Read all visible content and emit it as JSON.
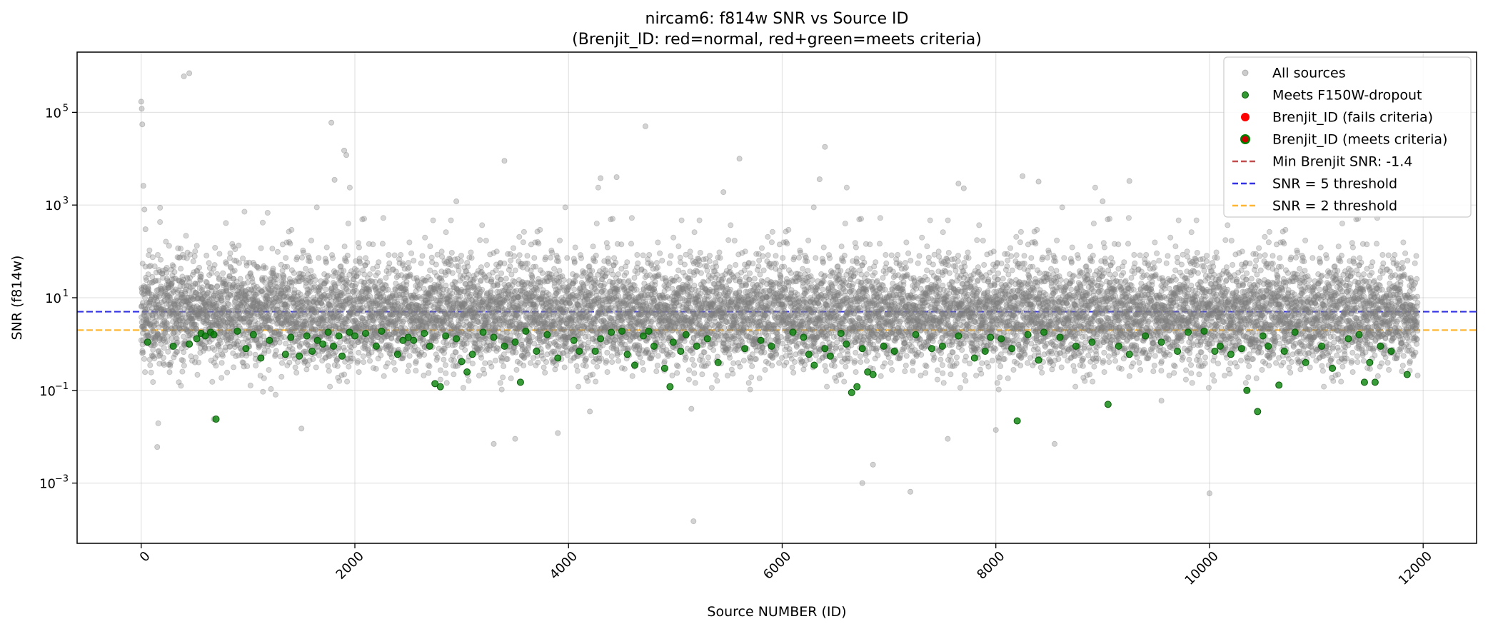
{
  "chart_data": {
    "type": "scatter",
    "title_line1": "nircam6: f814w SNR vs Source ID",
    "title_line2": "(Brenjit_ID: red=normal, red+green=meets criteria)",
    "xlabel": "Source NUMBER (ID)",
    "ylabel": "SNR (f814w)",
    "xlim": [
      -600,
      12500
    ],
    "ylim_log10": [
      -4.3,
      6.3
    ],
    "y_scale": "log",
    "x_ticks": [
      0,
      2000,
      4000,
      6000,
      8000,
      10000,
      12000
    ],
    "x_tick_labels": [
      "0",
      "2000",
      "4000",
      "6000",
      "8000",
      "10000",
      "12000"
    ],
    "y_ticks_log10": [
      -3,
      -1,
      1,
      3,
      5
    ],
    "y_tick_labels": [
      "10",
      "10",
      "10",
      "10",
      "10"
    ],
    "y_tick_exponents": [
      "−3",
      "−1",
      "1",
      "3",
      "5"
    ],
    "grid": true,
    "legend_position": "top-right",
    "colors": {
      "all_sources": "#808080",
      "meets_dropout": "#008000",
      "brenjit_fail": "#ff0000",
      "snr5_line": "#0000dd",
      "snr2_line": "#ffa500",
      "min_brenjit_line": "#b22222"
    },
    "thresholds": {
      "snr5": 5,
      "snr2": 2
    },
    "legend": [
      {
        "label": "All sources",
        "marker": "gray-dot"
      },
      {
        "label": "Meets F150W-dropout",
        "marker": "green-dot"
      },
      {
        "label": "Brenjit_ID (fails criteria)",
        "marker": "red-dot"
      },
      {
        "label": "Brenjit_ID (meets criteria)",
        "marker": "red-green-dot"
      },
      {
        "label": "Min Brenjit SNR: -1.4",
        "marker": "darkred-dash"
      },
      {
        "label": "SNR = 5 threshold",
        "marker": "blue-dash"
      },
      {
        "label": "SNR = 2 threshold",
        "marker": "orange-dash"
      }
    ],
    "all_sources": {
      "x_range": [
        0,
        11950
      ],
      "count_approx": 11950,
      "notable_points": [
        [
          0,
          170000
        ],
        [
          5,
          120000
        ],
        [
          10,
          55000
        ],
        [
          20,
          2600
        ],
        [
          30,
          800
        ],
        [
          40,
          300
        ],
        [
          400,
          600000
        ],
        [
          450,
          700000
        ],
        [
          1780,
          60000
        ],
        [
          1900,
          15000
        ],
        [
          1920,
          12000
        ],
        [
          1810,
          3500
        ],
        [
          2950,
          1200
        ],
        [
          3400,
          9000
        ],
        [
          4300,
          3800
        ],
        [
          4450,
          4000
        ],
        [
          4720,
          50000
        ],
        [
          5600,
          10000
        ],
        [
          5450,
          1900
        ],
        [
          6400,
          18000
        ],
        [
          6350,
          3600
        ],
        [
          7650,
          2900
        ],
        [
          7700,
          2300
        ],
        [
          8250,
          4200
        ],
        [
          8400,
          3200
        ],
        [
          9250,
          3300
        ],
        [
          9000,
          1200
        ],
        [
          680,
          0.024
        ],
        [
          150,
          0.006
        ],
        [
          1500,
          0.015
        ],
        [
          3300,
          0.007
        ],
        [
          3500,
          0.009
        ],
        [
          3900,
          0.012
        ],
        [
          5170,
          0.00015
        ],
        [
          6750,
          0.001
        ],
        [
          6850,
          0.0025
        ],
        [
          7200,
          0.00065
        ],
        [
          7550,
          0.009
        ],
        [
          8000,
          0.014
        ],
        [
          8550,
          0.007
        ],
        [
          10000,
          0.0006
        ],
        [
          4200,
          0.035
        ],
        [
          5150,
          0.04
        ],
        [
          9550,
          0.06
        ]
      ]
    },
    "meets_dropout_points": [
      [
        60,
        1.1
      ],
      [
        300,
        0.9
      ],
      [
        450,
        1.0
      ],
      [
        520,
        1.3
      ],
      [
        560,
        1.7
      ],
      [
        600,
        1.5
      ],
      [
        650,
        1.8
      ],
      [
        680,
        1.6
      ],
      [
        700,
        0.024
      ],
      [
        900,
        1.9
      ],
      [
        980,
        0.8
      ],
      [
        1050,
        1.6
      ],
      [
        1120,
        0.5
      ],
      [
        1200,
        1.2
      ],
      [
        1350,
        0.6
      ],
      [
        1400,
        1.4
      ],
      [
        1480,
        0.55
      ],
      [
        1550,
        1.5
      ],
      [
        1600,
        0.7
      ],
      [
        1650,
        1.2
      ],
      [
        1700,
        1.0
      ],
      [
        1750,
        1.8
      ],
      [
        1800,
        0.9
      ],
      [
        1850,
        1.5
      ],
      [
        1880,
        0.55
      ],
      [
        1950,
        1.8
      ],
      [
        2000,
        1.5
      ],
      [
        2100,
        1.7
      ],
      [
        2200,
        0.9
      ],
      [
        2250,
        1.9
      ],
      [
        2400,
        0.6
      ],
      [
        2450,
        1.2
      ],
      [
        2500,
        1.4
      ],
      [
        2550,
        1.2
      ],
      [
        2650,
        1.7
      ],
      [
        2700,
        0.9
      ],
      [
        2750,
        0.14
      ],
      [
        2800,
        0.12
      ],
      [
        2850,
        1.5
      ],
      [
        2950,
        1.3
      ],
      [
        3000,
        0.42
      ],
      [
        3050,
        0.25
      ],
      [
        3100,
        0.6
      ],
      [
        3200,
        1.8
      ],
      [
        3300,
        1.4
      ],
      [
        3400,
        0.9
      ],
      [
        3500,
        1.1
      ],
      [
        3550,
        0.15
      ],
      [
        3600,
        1.9
      ],
      [
        3700,
        0.7
      ],
      [
        3800,
        1.6
      ],
      [
        3900,
        0.5
      ],
      [
        4050,
        1.2
      ],
      [
        4100,
        0.7
      ],
      [
        4250,
        0.7
      ],
      [
        4300,
        1.3
      ],
      [
        4400,
        1.8
      ],
      [
        4500,
        1.9
      ],
      [
        4550,
        0.6
      ],
      [
        4620,
        0.35
      ],
      [
        4700,
        1.5
      ],
      [
        4750,
        1.9
      ],
      [
        4800,
        0.9
      ],
      [
        4900,
        0.3
      ],
      [
        4950,
        0.12
      ],
      [
        4980,
        1.1
      ],
      [
        5050,
        0.7
      ],
      [
        5100,
        1.6
      ],
      [
        5200,
        0.9
      ],
      [
        5300,
        1.3
      ],
      [
        5400,
        0.4
      ],
      [
        5650,
        0.8
      ],
      [
        5800,
        1.2
      ],
      [
        5900,
        0.9
      ],
      [
        6100,
        1.8
      ],
      [
        6200,
        1.4
      ],
      [
        6250,
        0.6
      ],
      [
        6300,
        0.35
      ],
      [
        6400,
        0.8
      ],
      [
        6450,
        0.55
      ],
      [
        6550,
        1.7
      ],
      [
        6600,
        1.0
      ],
      [
        6650,
        0.09
      ],
      [
        6700,
        0.12
      ],
      [
        6750,
        0.8
      ],
      [
        6800,
        0.25
      ],
      [
        6850,
        0.22
      ],
      [
        6950,
        0.9
      ],
      [
        7050,
        0.7
      ],
      [
        7250,
        1.6
      ],
      [
        7400,
        0.8
      ],
      [
        7500,
        0.9
      ],
      [
        7650,
        1.5
      ],
      [
        7800,
        0.5
      ],
      [
        7900,
        0.7
      ],
      [
        7950,
        1.4
      ],
      [
        8050,
        1.3
      ],
      [
        8150,
        0.8
      ],
      [
        8200,
        0.022
      ],
      [
        8300,
        1.6
      ],
      [
        8400,
        0.45
      ],
      [
        8450,
        1.8
      ],
      [
        8600,
        1.4
      ],
      [
        8750,
        0.9
      ],
      [
        8900,
        1.1
      ],
      [
        9050,
        0.05
      ],
      [
        9150,
        0.9
      ],
      [
        9250,
        0.6
      ],
      [
        9400,
        1.5
      ],
      [
        9550,
        1.1
      ],
      [
        9700,
        0.7
      ],
      [
        9800,
        1.8
      ],
      [
        9950,
        1.9
      ],
      [
        10050,
        0.7
      ],
      [
        10100,
        0.9
      ],
      [
        10200,
        0.6
      ],
      [
        10300,
        0.8
      ],
      [
        10350,
        0.1
      ],
      [
        10450,
        0.035
      ],
      [
        10500,
        1.5
      ],
      [
        10550,
        0.9
      ],
      [
        10650,
        0.13
      ],
      [
        10700,
        0.7
      ],
      [
        10800,
        1.8
      ],
      [
        10900,
        0.4
      ],
      [
        11050,
        0.9
      ],
      [
        11150,
        0.3
      ],
      [
        11300,
        1.3
      ],
      [
        11400,
        1.6
      ],
      [
        11450,
        0.15
      ],
      [
        11500,
        0.4
      ],
      [
        11550,
        0.15
      ],
      [
        11600,
        0.9
      ],
      [
        11700,
        0.7
      ],
      [
        11850,
        0.22
      ]
    ]
  }
}
